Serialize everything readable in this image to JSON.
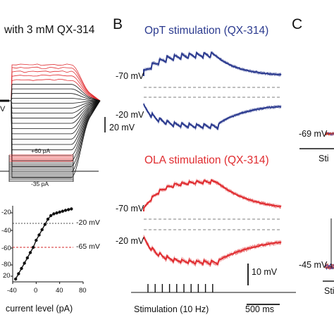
{
  "panel_a": {
    "title": "with 3 mM QX-314",
    "left_marker": "V",
    "scale_label": "20 mV",
    "step_top_label": "+60 pA",
    "step_bottom_label": "-35 pA",
    "chart_data": {
      "type": "scatter",
      "x_ticks": [
        "-40",
        "0",
        "40",
        "80"
      ],
      "y_ticks": [
        "-20",
        "-40",
        "-60",
        "-80",
        "20"
      ],
      "xlabel": "current level (pA)",
      "ylabel": "",
      "annotations": [
        "-20 mV",
        "-65 mV"
      ],
      "xlim": [
        -40,
        80
      ],
      "ylim": [
        -20,
        20
      ],
      "series": [
        {
          "x": [
            -35,
            -30,
            -25,
            -20,
            -15,
            -10,
            -5,
            0,
            5,
            10,
            15,
            20,
            25,
            30,
            35,
            40,
            45,
            50,
            55,
            60
          ],
          "y": [
            -20,
            -17,
            -14,
            -11,
            -8,
            -5,
            -2,
            2,
            5,
            8,
            11,
            14,
            16,
            17,
            17.5,
            18,
            18.5,
            19,
            19.4,
            19.8
          ]
        }
      ],
      "reference_line_color": "#d62728"
    }
  },
  "panel_b": {
    "letter": "B",
    "opt_title": "OpT stimulation (QX-314)",
    "ola_title": "OLA stimulation (QX-314)",
    "opt_upper_potential": "-70 mV",
    "opt_lower_potential": "-20 mV",
    "ola_upper_potential": "-70 mV",
    "ola_lower_potential": "-20 mV",
    "scale_label": "10 mV",
    "stimulation_label": "Stimulation (10 Hz)",
    "time_scale_label": "500 ms",
    "stimulus_pulse_count": 10,
    "blue_color": "#2b3a8f",
    "red_color": "#e02b2f"
  },
  "panel_c": {
    "letter": "C",
    "upper_potential": "-69 mV",
    "lower_potential": "-45 mV",
    "stim_label_partial_1": "Sti",
    "stim_label_partial_2": "Sti"
  }
}
